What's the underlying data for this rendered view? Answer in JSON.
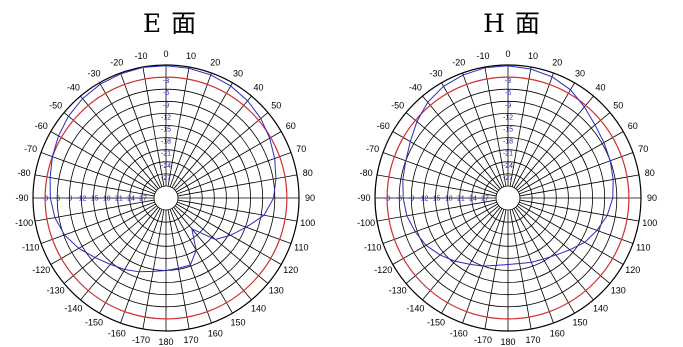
{
  "colors": {
    "grid": "#000000",
    "reference_ring": "#d03030",
    "pattern": "#2a2ac0",
    "ring_label": "#1a1aa8",
    "background": "#ffffff"
  },
  "chart_data": [
    {
      "type": "polar",
      "title": "E 面",
      "radial_unit": "dB",
      "radial_range": [
        -30,
        0
      ],
      "radial_ticks": [
        -3,
        -6,
        -9,
        -12,
        -15,
        -18,
        -21,
        -24,
        -27
      ],
      "reference_ring_dB": -3,
      "angle_ticks_deg": [
        0,
        10,
        20,
        30,
        40,
        50,
        60,
        70,
        80,
        90,
        100,
        110,
        120,
        130,
        140,
        150,
        160,
        170,
        180,
        -170,
        -160,
        -150,
        -140,
        -130,
        -120,
        -110,
        -100,
        -90,
        -80,
        -70,
        -60,
        -50,
        -40,
        -30,
        -20,
        -10
      ],
      "angle_labels": [
        "0",
        "10",
        "20",
        "30",
        "40",
        "50",
        "60",
        "70",
        "80",
        "90",
        "100",
        "110",
        "120",
        "130",
        "140",
        "150",
        "160",
        "170",
        "180",
        "-170",
        "-160",
        "-150",
        "-140",
        "-130",
        "-120",
        "-110",
        "-100",
        "-90",
        "-80",
        "-70",
        "-60",
        "-50",
        "-40",
        "-30",
        "-20",
        "-10"
      ],
      "series": [
        {
          "angle_deg": [
            0,
            10,
            20,
            30,
            40,
            50,
            60,
            70,
            80,
            90,
            100,
            110,
            120,
            130,
            140,
            150,
            160,
            170,
            180,
            190,
            200,
            210,
            220,
            230,
            240,
            250,
            260,
            270,
            280,
            290,
            300,
            310,
            320,
            330,
            340,
            350
          ],
          "gain_dB": [
            -0.2,
            -0.3,
            -0.5,
            -0.9,
            -1.5,
            -2.3,
            -3.3,
            -4.3,
            -5.3,
            -6.3,
            -8.3,
            -11.8,
            -14.5,
            -17.0,
            -23.0,
            -18.0,
            -15.3,
            -15.3,
            -15.0,
            -14.5,
            -13.5,
            -12.5,
            -11.5,
            -10.0,
            -8.0,
            -6.2,
            -5.0,
            -4.3,
            -3.8,
            -3.0,
            -2.2,
            -1.4,
            -0.8,
            -0.4,
            -0.2,
            -0.1
          ]
        }
      ]
    },
    {
      "type": "polar",
      "title": "H 面",
      "radial_unit": "dB",
      "radial_range": [
        -30,
        0
      ],
      "radial_ticks": [
        -3,
        -6,
        -9,
        -12,
        -15,
        -18,
        -21,
        -24,
        -27
      ],
      "reference_ring_dB": -3,
      "angle_ticks_deg": [
        0,
        10,
        20,
        30,
        40,
        50,
        60,
        70,
        80,
        90,
        100,
        110,
        120,
        130,
        140,
        150,
        160,
        170,
        180,
        -170,
        -160,
        -150,
        -140,
        -130,
        -120,
        -110,
        -100,
        -90,
        -80,
        -70,
        -60,
        -50,
        -40,
        -30,
        -20,
        -10
      ],
      "angle_labels": [
        "0",
        "10",
        "20",
        "30",
        "40",
        "50",
        "60",
        "70",
        "80",
        "90",
        "100",
        "110",
        "120",
        "130",
        "140",
        "150",
        "160",
        "170",
        "180",
        "-170",
        "-160",
        "-150",
        "-140",
        "-130",
        "-120",
        "-110",
        "-100",
        "-90",
        "-80",
        "-70",
        "-60",
        "-50",
        "-40",
        "-30",
        "-20",
        "-10"
      ],
      "series": [
        {
          "angle_deg": [
            0,
            10,
            20,
            30,
            40,
            50,
            60,
            70,
            80,
            90,
            100,
            110,
            120,
            130,
            140,
            150,
            160,
            170,
            180,
            190,
            200,
            210,
            220,
            230,
            240,
            250,
            260,
            270,
            280,
            290,
            300,
            310,
            320,
            330,
            340,
            350
          ],
          "gain_dB": [
            -0.2,
            -0.5,
            -1.0,
            -2.0,
            -3.5,
            -4.8,
            -5.5,
            -6.0,
            -6.5,
            -7.0,
            -8.0,
            -9.5,
            -11.0,
            -13.0,
            -14.5,
            -15.5,
            -16.0,
            -16.5,
            -16.5,
            -16.0,
            -15.0,
            -14.0,
            -12.5,
            -11.0,
            -9.5,
            -8.5,
            -7.5,
            -7.0,
            -6.5,
            -6.0,
            -5.0,
            -3.5,
            -2.0,
            -1.0,
            -0.5,
            -0.2
          ]
        }
      ]
    }
  ]
}
